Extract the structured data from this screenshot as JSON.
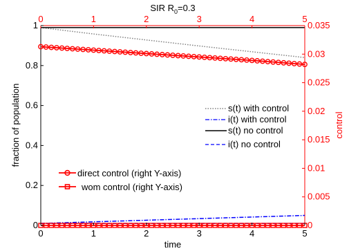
{
  "chart_data": {
    "type": "line",
    "title_base": "SIR R",
    "title_sub": "0",
    "title_rest": "=0.3",
    "xlabel": "time",
    "ylabel_left": "fraction of population",
    "ylabel_right": "control",
    "xlim": [
      0,
      5
    ],
    "ylim_left": [
      0,
      1
    ],
    "ylim_right": [
      0,
      0.035
    ],
    "x_ticks": [
      0,
      1,
      2,
      3,
      4,
      5
    ],
    "y_left_ticks": [
      0,
      0.2,
      0.4,
      0.6,
      0.8,
      1
    ],
    "y_right_ticks": [
      0,
      0.005,
      0.01,
      0.015,
      0.02,
      0.025,
      0.03,
      0.035
    ],
    "grid": false,
    "colors": {
      "red": "#ff0000",
      "blue": "#0000ff",
      "black": "#000000",
      "gray": "#808080"
    },
    "series": [
      {
        "name": "s(t) with control",
        "axis": "left",
        "style": "dotted",
        "color": "#808080",
        "x": [
          0,
          1,
          2,
          3,
          4,
          5
        ],
        "y": [
          0.99,
          0.958,
          0.928,
          0.898,
          0.869,
          0.84
        ]
      },
      {
        "name": "i(t) with control",
        "axis": "left",
        "style": "dashdot",
        "color": "#0000ff",
        "x": [
          0,
          1,
          2,
          3,
          4,
          5
        ],
        "y": [
          0.01,
          0.018,
          0.026,
          0.034,
          0.042,
          0.05
        ]
      },
      {
        "name": "s(t) no control",
        "axis": "left",
        "style": "solid",
        "color": "#000000",
        "x": [
          0,
          5
        ],
        "y": [
          0.99,
          0.99
        ]
      },
      {
        "name": "i(t) no control",
        "axis": "left",
        "style": "dashed",
        "color": "#0000ff",
        "x": [
          0,
          5
        ],
        "y": [
          0.01,
          0.01
        ]
      },
      {
        "name": "direct control (right Y-axis)",
        "axis": "right",
        "style": "solid",
        "color": "#ff0000",
        "marker": "circle",
        "x": [
          0,
          1,
          2,
          3,
          4,
          5
        ],
        "y": [
          0.0313,
          0.0307,
          0.0301,
          0.0295,
          0.0289,
          0.0282
        ]
      },
      {
        "name": "wom control (right Y-axis)",
        "axis": "right",
        "style": "solid",
        "color": "#ff0000",
        "marker": "square",
        "x": [
          0,
          5
        ],
        "y": [
          0,
          0
        ]
      }
    ],
    "legend_upper_placement": "right-middle",
    "legend_lower_placement": "lower-left"
  }
}
